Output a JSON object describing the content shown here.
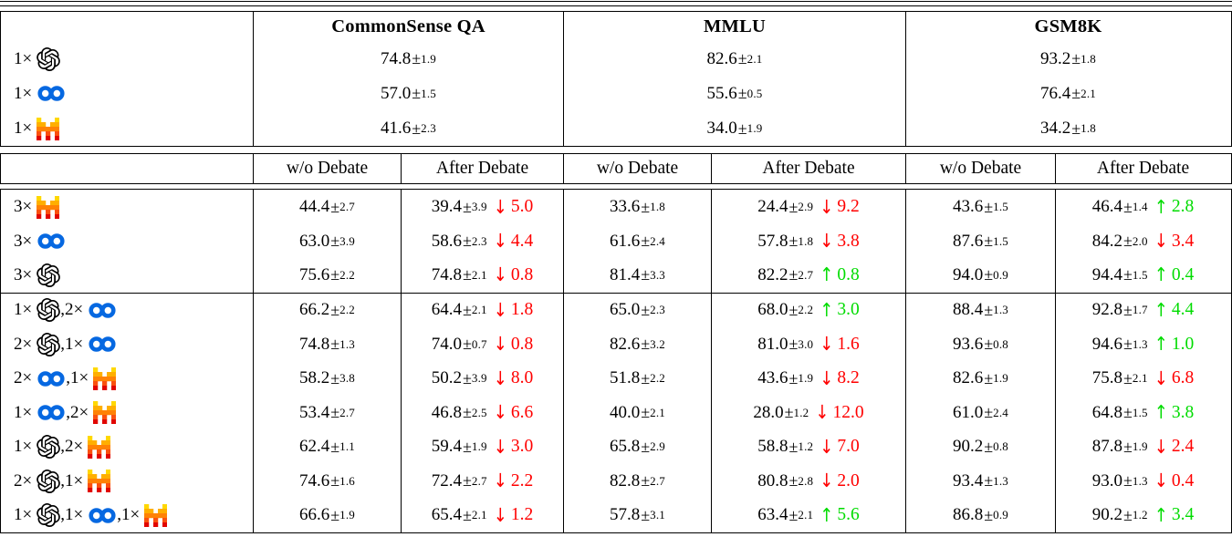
{
  "table": {
    "benchmarks": [
      "CommonSense QA",
      "MMLU",
      "GSM8K"
    ],
    "sub_headers": [
      "w/o Debate",
      "After Debate"
    ],
    "pm_symbol": "±",
    "label_separator": ", ",
    "multiply_symbol": "×",
    "symbols": {
      "up_arrow": "↑",
      "down_arrow": "↓"
    },
    "colors": {
      "increase_green": "#00DC00",
      "decrease_red": "#FF0000",
      "meta_blue": "#0668E1",
      "openai_black": "#000000",
      "mistral_row_colors": [
        "#FFD800",
        "#FFAF00",
        "#FF8205",
        "#FA500F",
        "#E10500"
      ]
    },
    "icons": {
      "openai": "openai-logo-icon",
      "meta": "meta-infinity-icon",
      "mistral": "mistral-pixel-m-icon"
    },
    "single_model_rows": [
      {
        "label_parts": [
          {
            "count": "1×",
            "model": "openai"
          }
        ],
        "scores": [
          {
            "v": "74.8",
            "e": "1.9"
          },
          {
            "v": "82.6",
            "e": "2.1"
          },
          {
            "v": "93.2",
            "e": "1.8"
          }
        ]
      },
      {
        "label_parts": [
          {
            "count": "1×",
            "model": "meta"
          }
        ],
        "scores": [
          {
            "v": "57.0",
            "e": "1.5"
          },
          {
            "v": "55.6",
            "e": "0.5"
          },
          {
            "v": "76.4",
            "e": "2.1"
          }
        ]
      },
      {
        "label_parts": [
          {
            "count": "1×",
            "model": "mistral"
          }
        ],
        "scores": [
          {
            "v": "41.6",
            "e": "2.3"
          },
          {
            "v": "34.0",
            "e": "1.9"
          },
          {
            "v": "34.2",
            "e": "1.8"
          }
        ]
      }
    ],
    "debate_rows": [
      {
        "label_parts": [
          {
            "count": "3×",
            "model": "mistral"
          }
        ],
        "group_end": false,
        "cells": [
          {
            "v": "44.4",
            "e": "2.7"
          },
          {
            "v": "39.4",
            "e": "3.9",
            "dir": "down",
            "delta": "5.0"
          },
          {
            "v": "33.6",
            "e": "1.8"
          },
          {
            "v": "24.4",
            "e": "2.9",
            "dir": "down",
            "delta": "9.2"
          },
          {
            "v": "43.6",
            "e": "1.5"
          },
          {
            "v": "46.4",
            "e": "1.4",
            "dir": "up",
            "delta": "2.8"
          }
        ]
      },
      {
        "label_parts": [
          {
            "count": "3×",
            "model": "meta"
          }
        ],
        "group_end": false,
        "cells": [
          {
            "v": "63.0",
            "e": "3.9"
          },
          {
            "v": "58.6",
            "e": "2.3",
            "dir": "down",
            "delta": "4.4"
          },
          {
            "v": "61.6",
            "e": "2.4"
          },
          {
            "v": "57.8",
            "e": "1.8",
            "dir": "down",
            "delta": "3.8"
          },
          {
            "v": "87.6",
            "e": "1.5"
          },
          {
            "v": "84.2",
            "e": "2.0",
            "dir": "down",
            "delta": "3.4"
          }
        ]
      },
      {
        "label_parts": [
          {
            "count": "3×",
            "model": "openai"
          }
        ],
        "group_end": true,
        "cells": [
          {
            "v": "75.6",
            "e": "2.2"
          },
          {
            "v": "74.8",
            "e": "2.1",
            "dir": "down",
            "delta": "0.8"
          },
          {
            "v": "81.4",
            "e": "3.3"
          },
          {
            "v": "82.2",
            "e": "2.7",
            "dir": "up",
            "delta": "0.8"
          },
          {
            "v": "94.0",
            "e": "0.9"
          },
          {
            "v": "94.4",
            "e": "1.5",
            "dir": "up",
            "delta": "0.4"
          }
        ]
      },
      {
        "label_parts": [
          {
            "count": "1×",
            "model": "openai"
          },
          {
            "count": "2×",
            "model": "meta"
          }
        ],
        "group_end": false,
        "cells": [
          {
            "v": "66.2",
            "e": "2.2"
          },
          {
            "v": "64.4",
            "e": "2.1",
            "dir": "down",
            "delta": "1.8"
          },
          {
            "v": "65.0",
            "e": "2.3"
          },
          {
            "v": "68.0",
            "e": "2.2",
            "dir": "up",
            "delta": "3.0"
          },
          {
            "v": "88.4",
            "e": "1.3"
          },
          {
            "v": "92.8",
            "e": "1.7",
            "dir": "up",
            "delta": "4.4"
          }
        ]
      },
      {
        "label_parts": [
          {
            "count": "2×",
            "model": "openai"
          },
          {
            "count": "1×",
            "model": "meta"
          }
        ],
        "group_end": false,
        "cells": [
          {
            "v": "74.8",
            "e": "1.3"
          },
          {
            "v": "74.0",
            "e": "0.7",
            "dir": "down",
            "delta": "0.8"
          },
          {
            "v": "82.6",
            "e": "3.2"
          },
          {
            "v": "81.0",
            "e": "3.0",
            "dir": "down",
            "delta": "1.6"
          },
          {
            "v": "93.6",
            "e": "0.8"
          },
          {
            "v": "94.6",
            "e": "1.3",
            "dir": "up",
            "delta": "1.0"
          }
        ]
      },
      {
        "label_parts": [
          {
            "count": "2×",
            "model": "meta"
          },
          {
            "count": "1×",
            "model": "mistral"
          }
        ],
        "group_end": false,
        "cells": [
          {
            "v": "58.2",
            "e": "3.8"
          },
          {
            "v": "50.2",
            "e": "3.9",
            "dir": "down",
            "delta": "8.0"
          },
          {
            "v": "51.8",
            "e": "2.2"
          },
          {
            "v": "43.6",
            "e": "1.9",
            "dir": "down",
            "delta": "8.2"
          },
          {
            "v": "82.6",
            "e": "1.9"
          },
          {
            "v": "75.8",
            "e": "2.1",
            "dir": "down",
            "delta": "6.8"
          }
        ]
      },
      {
        "label_parts": [
          {
            "count": "1×",
            "model": "meta"
          },
          {
            "count": "2×",
            "model": "mistral"
          }
        ],
        "group_end": false,
        "cells": [
          {
            "v": "53.4",
            "e": "2.7"
          },
          {
            "v": "46.8",
            "e": "2.5",
            "dir": "down",
            "delta": "6.6"
          },
          {
            "v": "40.0",
            "e": "2.1"
          },
          {
            "v": "28.0",
            "e": "1.2",
            "dir": "down",
            "delta": "12.0"
          },
          {
            "v": "61.0",
            "e": "2.4"
          },
          {
            "v": "64.8",
            "e": "1.5",
            "dir": "up",
            "delta": "3.8"
          }
        ]
      },
      {
        "label_parts": [
          {
            "count": "1×",
            "model": "openai"
          },
          {
            "count": "2×",
            "model": "mistral"
          }
        ],
        "group_end": false,
        "cells": [
          {
            "v": "62.4",
            "e": "1.1"
          },
          {
            "v": "59.4",
            "e": "1.9",
            "dir": "down",
            "delta": "3.0"
          },
          {
            "v": "65.8",
            "e": "2.9"
          },
          {
            "v": "58.8",
            "e": "1.2",
            "dir": "down",
            "delta": "7.0"
          },
          {
            "v": "90.2",
            "e": "0.8"
          },
          {
            "v": "87.8",
            "e": "1.9",
            "dir": "down",
            "delta": "2.4"
          }
        ]
      },
      {
        "label_parts": [
          {
            "count": "2×",
            "model": "openai"
          },
          {
            "count": "1×",
            "model": "mistral"
          }
        ],
        "group_end": false,
        "cells": [
          {
            "v": "74.6",
            "e": "1.6"
          },
          {
            "v": "72.4",
            "e": "2.7",
            "dir": "down",
            "delta": "2.2"
          },
          {
            "v": "82.8",
            "e": "2.7"
          },
          {
            "v": "80.8",
            "e": "2.8",
            "dir": "down",
            "delta": "2.0"
          },
          {
            "v": "93.4",
            "e": "1.3"
          },
          {
            "v": "93.0",
            "e": "1.3",
            "dir": "down",
            "delta": "0.4"
          }
        ]
      },
      {
        "label_parts": [
          {
            "count": "1×",
            "model": "openai"
          },
          {
            "count": "1×",
            "model": "meta"
          },
          {
            "count": "1×",
            "model": "mistral"
          }
        ],
        "group_end": false,
        "cells": [
          {
            "v": "66.6",
            "e": "1.9"
          },
          {
            "v": "65.4",
            "e": "2.1",
            "dir": "down",
            "delta": "1.2"
          },
          {
            "v": "57.8",
            "e": "3.1"
          },
          {
            "v": "63.4",
            "e": "2.1",
            "dir": "up",
            "delta": "5.6"
          },
          {
            "v": "86.8",
            "e": "0.9"
          },
          {
            "v": "90.2",
            "e": "1.2",
            "dir": "up",
            "delta": "3.4"
          }
        ]
      }
    ]
  }
}
